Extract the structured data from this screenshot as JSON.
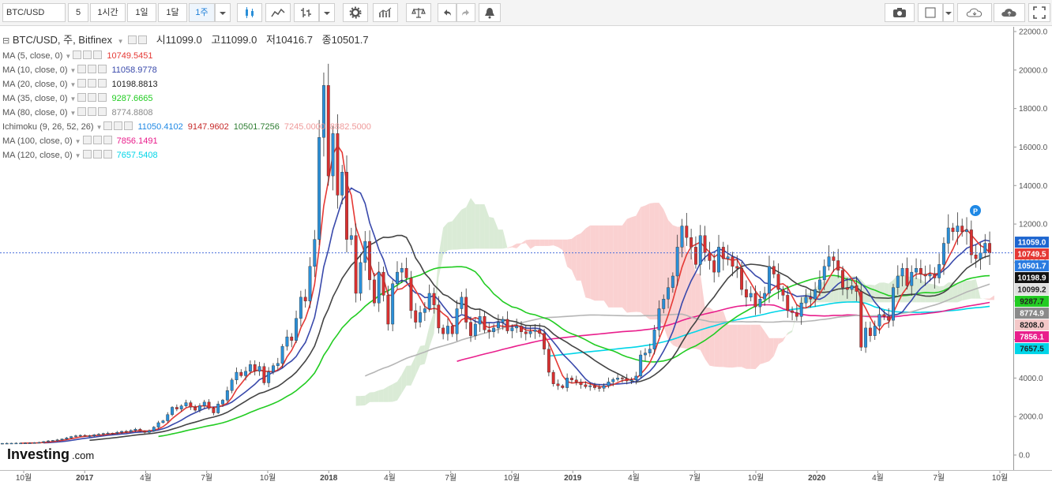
{
  "toolbar": {
    "symbol": "BTC/USD",
    "intervals": [
      "5",
      "1시간",
      "1일",
      "1달",
      "1주"
    ],
    "active_interval": "1주"
  },
  "legend": {
    "title": "BTC/USD, 주, Bitfinex",
    "ohlc": [
      {
        "label": "시",
        "value": "11099.0"
      },
      {
        "label": "고",
        "value": "11099.0"
      },
      {
        "label": "저",
        "value": "10416.7"
      },
      {
        "label": "종",
        "value": "10501.7"
      }
    ],
    "indicators": [
      {
        "name": "MA (5, close, 0)",
        "values": [
          "10749.5451"
        ],
        "colors": [
          "#e53935"
        ]
      },
      {
        "name": "MA (10, close, 0)",
        "values": [
          "11058.9778"
        ],
        "colors": [
          "#3949ab"
        ]
      },
      {
        "name": "MA (20, close, 0)",
        "values": [
          "10198.8813"
        ],
        "colors": [
          "#222222"
        ]
      },
      {
        "name": "MA (35, close, 0)",
        "values": [
          "9287.6665"
        ],
        "colors": [
          "#22cc22"
        ]
      },
      {
        "name": "MA (80, close, 0)",
        "values": [
          "8774.8808"
        ],
        "colors": [
          "#8a8a8a"
        ]
      },
      {
        "name": "Ichimoku (9, 26, 52, 26)",
        "values": [
          "11050.4102",
          "9147.9602",
          "10501.7256",
          "7245.0000",
          "8882.5000"
        ],
        "colors": [
          "#1e88e5",
          "#c62828",
          "#2e7d32",
          "#ef9a9a",
          "#ef9a9a"
        ]
      },
      {
        "name": "MA (100, close, 0)",
        "values": [
          "7856.1491"
        ],
        "colors": [
          "#e91e8c"
        ]
      },
      {
        "name": "MA (120, close, 0)",
        "values": [
          "7657.5408"
        ],
        "colors": [
          "#00d5e8"
        ]
      }
    ]
  },
  "chart_data": {
    "type": "candlestick",
    "y_axis": {
      "min": 0,
      "max": 22000,
      "ticks": [
        "0.0",
        "2000.0",
        "4000.0",
        "6000.0",
        "8000.0",
        "10000.0",
        "12000.0",
        "14000.0",
        "16000.0",
        "18000.0",
        "20000.0",
        "22000.0"
      ]
    },
    "x_axis": {
      "labels": [
        "10월",
        "2017",
        "4월",
        "7월",
        "10월",
        "2018",
        "4월",
        "7월",
        "10월",
        "2019",
        "4월",
        "7월",
        "10월",
        "2020",
        "4월",
        "7월",
        "10월"
      ]
    },
    "close_series": [
      610,
      612,
      615,
      618,
      620,
      624,
      630,
      640,
      655,
      700,
      735,
      760,
      790,
      835,
      890,
      960,
      1000,
      1025,
      980,
      1000,
      1050,
      1080,
      1120,
      1140,
      1130,
      1180,
      1230,
      1210,
      1280,
      1340,
      1230,
      1175,
      1260,
      1450,
      1680,
      1780,
      2100,
      2480,
      2390,
      2550,
      2720,
      2490,
      2330,
      2560,
      2750,
      2430,
      2190,
      2650,
      2850,
      3350,
      3900,
      4300,
      4120,
      4350,
      4700,
      4350,
      4600,
      3750,
      4320,
      4640,
      4760,
      5650,
      6140,
      5950,
      7100,
      8200,
      8000,
      9800,
      11200,
      16500,
      19200,
      14500,
      16700,
      13500,
      14700,
      11200,
      11400,
      8400,
      10000,
      11100,
      9100,
      7900,
      9500,
      8300,
      6800,
      8900,
      9500,
      9700,
      9200,
      7500,
      6900,
      7400,
      7600,
      8400,
      7800,
      6600,
      6300,
      6700,
      6300,
      7600,
      8200,
      6900,
      6200,
      6800,
      7200,
      6500,
      6400,
      6600,
      6900,
      7050,
      6450,
      6600,
      6700,
      6400,
      6300,
      6420,
      6500,
      6320,
      5500,
      4300,
      3700,
      3600,
      3500,
      4000,
      3900,
      3800,
      3650,
      3550,
      3600,
      3500,
      3470,
      3600,
      3800,
      3930,
      4000,
      3980,
      3850,
      3900,
      4100,
      5200,
      5300,
      5500,
      6500,
      7600,
      8100,
      8700,
      9300,
      10800,
      11900,
      11300,
      10800,
      9900,
      11400,
      10500,
      10100,
      9500,
      10800,
      10200,
      10300,
      9800,
      9700,
      8600,
      8200,
      8400,
      7700,
      8100,
      8400,
      9800,
      9400,
      8600,
      8300,
      7500,
      7400,
      7200,
      7900,
      8200,
      8100,
      8600,
      9100,
      9800,
      10300,
      10100,
      9600,
      8700,
      8600,
      8800,
      8500,
      5600,
      6600,
      6200,
      6700,
      7300,
      7200,
      7000,
      8700,
      9300,
      9700,
      8800,
      9500,
      9700,
      9400,
      9300,
      9400,
      9200,
      9900,
      11000,
      11800,
      11600,
      11900,
      11600,
      11700,
      10400,
      10200,
      10500,
      11000,
      10500
    ],
    "last_price": 10501.7,
    "price_tags": [
      {
        "value": "11059.0",
        "color": "#1e66d0"
      },
      {
        "value": "10749.5",
        "color": "#e53935"
      },
      {
        "value": "10501.7",
        "color": "#2a7be0"
      },
      {
        "value": "10198.9",
        "color": "#111111"
      },
      {
        "value": "10099.2",
        "color": "#e0e0e0"
      },
      {
        "value": "9287.7",
        "color": "#22cc22"
      },
      {
        "value": "8774.9",
        "color": "#8a8a8a"
      },
      {
        "value": "8208.0",
        "color": "#f4c8c8"
      },
      {
        "value": "7856.1",
        "color": "#e91e8c"
      },
      {
        "value": "7657.5",
        "color": "#00d5e8"
      }
    ],
    "colors": {
      "up": "#2a8fd8",
      "down": "#d93030",
      "cloud_bull": "#d4e8cf",
      "cloud_bear": "#f9c9c9"
    }
  },
  "branding": {
    "logo": "Investing",
    "logo_suffix": ".com"
  },
  "marker": {
    "label": "P"
  }
}
